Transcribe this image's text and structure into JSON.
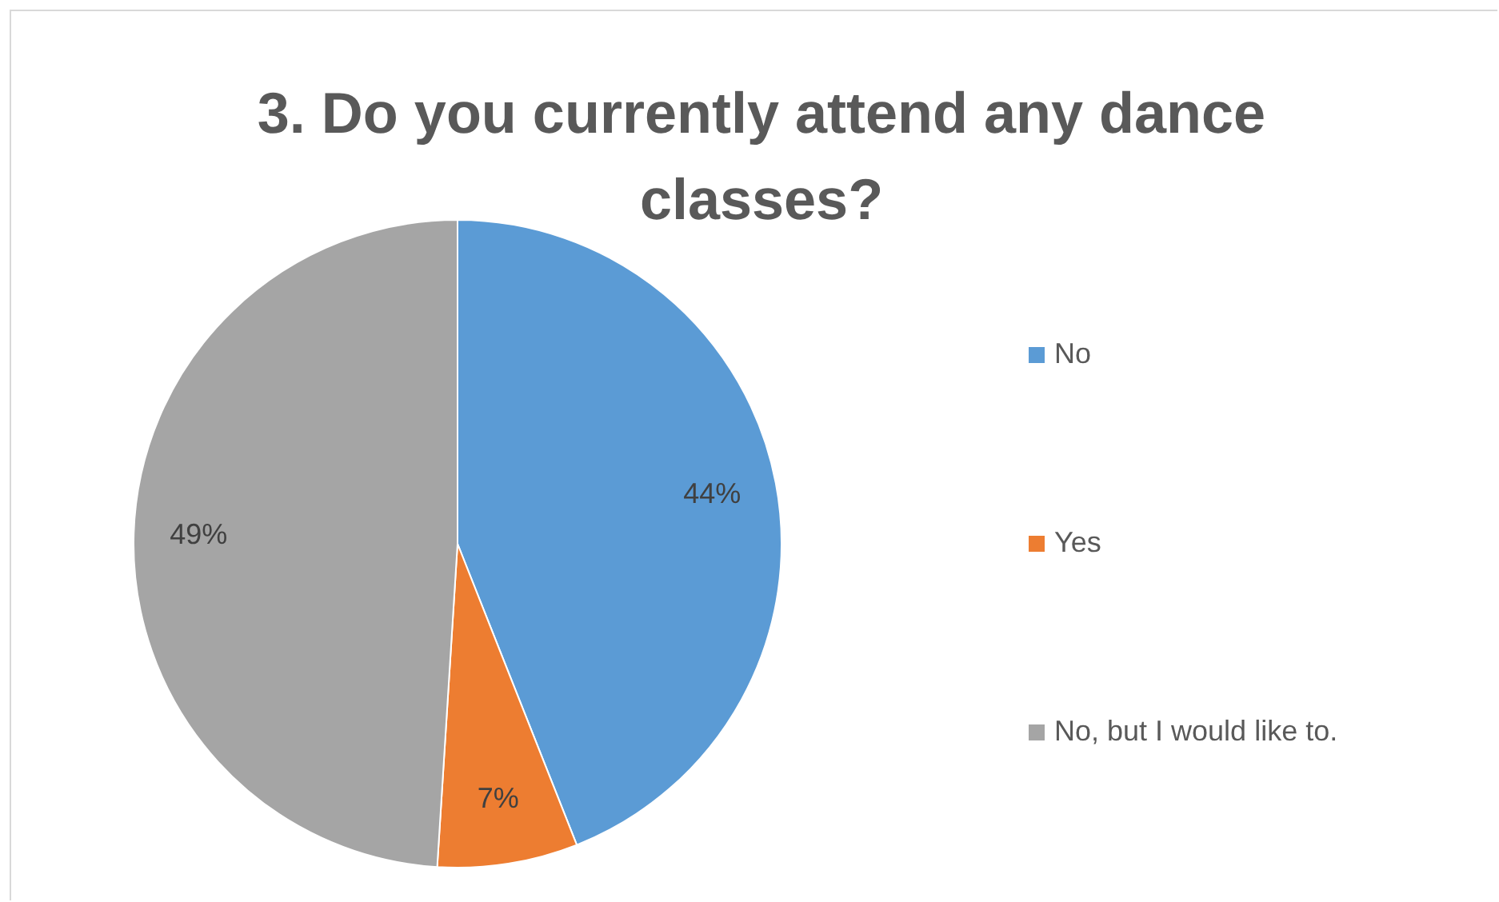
{
  "chart_data": {
    "type": "pie",
    "title": "3. Do you currently attend any dance classes?",
    "categories": [
      "No",
      "Yes",
      "No, but I would like to."
    ],
    "values": [
      44,
      7,
      49
    ],
    "colors": [
      "#5b9bd5",
      "#ed7d31",
      "#a5a5a5"
    ],
    "value_labels": [
      "44%",
      "7%",
      "49%"
    ],
    "legend": "right"
  }
}
